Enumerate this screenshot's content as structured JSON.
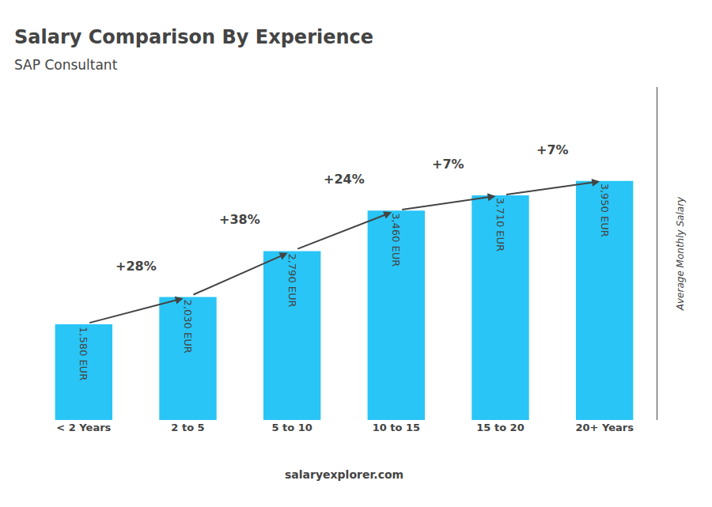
{
  "chart_data": {
    "type": "bar",
    "title": "Salary Comparison By Experience",
    "subtitle": "SAP Consultant",
    "ylabel": "Average Monthly Salary",
    "categories": [
      "< 2 Years",
      "2 to 5",
      "5 to 10",
      "10 to 15",
      "15 to 20",
      "20+ Years"
    ],
    "values": [
      1580,
      2030,
      2790,
      3460,
      3710,
      3950
    ],
    "value_labels": [
      "1,580 EUR",
      "2,030 EUR",
      "2,790 EUR",
      "3,460 EUR",
      "3,710 EUR",
      "3,950 EUR"
    ],
    "data_labels": true,
    "color": "#29c5f6",
    "ylim": [
      0,
      5500
    ],
    "yticks": [],
    "tick_labels": "x",
    "grid": false,
    "annotations": [
      {
        "text": "+28%",
        "from": "< 2 Years",
        "to": "2 to 5"
      },
      {
        "text": "+38%",
        "from": "2 to 5",
        "to": "5 to 10"
      },
      {
        "text": "+24%",
        "from": "5 to 10",
        "to": "10 to 15"
      },
      {
        "text": "+7%",
        "from": "10 to 15",
        "to": "15 to 20"
      },
      {
        "text": "+7%",
        "from": "15 to 20",
        "to": "20+ Years"
      },
      {
        "text": "salaryexplorer.com"
      }
    ]
  }
}
